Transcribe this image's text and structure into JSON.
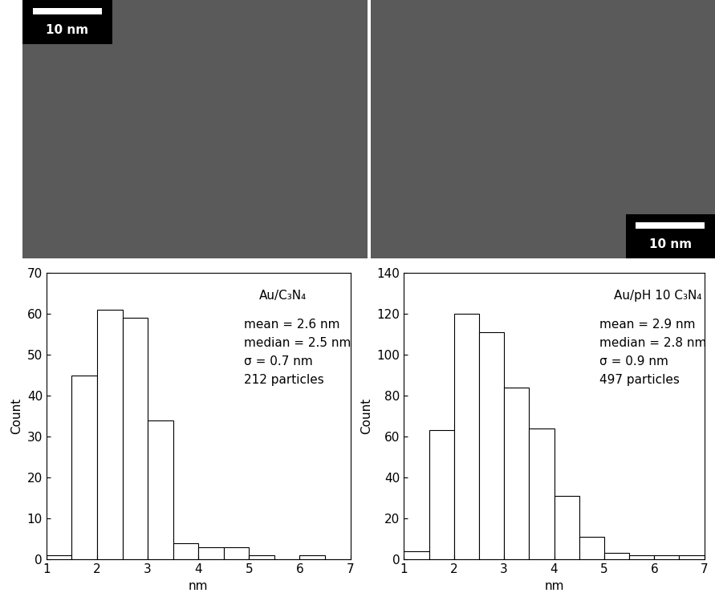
{
  "micrographs": [
    {
      "scale_bar": "10 nm"
    },
    {
      "scale_bar": "10 nm"
    }
  ],
  "chart_data": [
    {
      "type": "histogram",
      "title": "Au/C₃N₄",
      "annotations": [
        "mean = 2.6 nm",
        "median = 2.5 nm",
        "σ = 0.7 nm",
        "212 particles"
      ],
      "x_label": "nm",
      "y_label": "Count",
      "bins": [
        1,
        1.5,
        2,
        2.5,
        3,
        3.5,
        4,
        4.5,
        5,
        5.5,
        6,
        6.5,
        7
      ],
      "values": [
        1,
        45,
        61,
        59,
        34,
        4,
        3,
        3,
        1,
        0,
        1,
        0
      ],
      "color": "#ffffff",
      "xlim": [
        1,
        7
      ],
      "xticks": [
        1,
        2,
        3,
        4,
        5,
        6,
        7
      ],
      "ylim": [
        0,
        70
      ],
      "yticks": [
        0,
        10,
        20,
        30,
        40,
        50,
        60,
        70
      ]
    },
    {
      "type": "histogram",
      "title": "Au/pH 10 C₃N₄",
      "annotations": [
        "mean = 2.9 nm",
        "median = 2.8 nm",
        "σ = 0.9 nm",
        "497 particles"
      ],
      "x_label": "nm",
      "y_label": "Count",
      "bins": [
        1,
        1.5,
        2,
        2.5,
        3,
        3.5,
        4,
        4.5,
        5,
        5.5,
        6,
        6.5,
        7
      ],
      "values": [
        4,
        63,
        120,
        111,
        84,
        64,
        31,
        11,
        3,
        2,
        2,
        2
      ],
      "color": "#ffffff",
      "xlim": [
        1,
        7
      ],
      "xticks": [
        1,
        2,
        3,
        4,
        5,
        6,
        7
      ],
      "ylim": [
        0,
        140
      ],
      "yticks": [
        0,
        20,
        40,
        60,
        80,
        100,
        120,
        140
      ]
    }
  ]
}
